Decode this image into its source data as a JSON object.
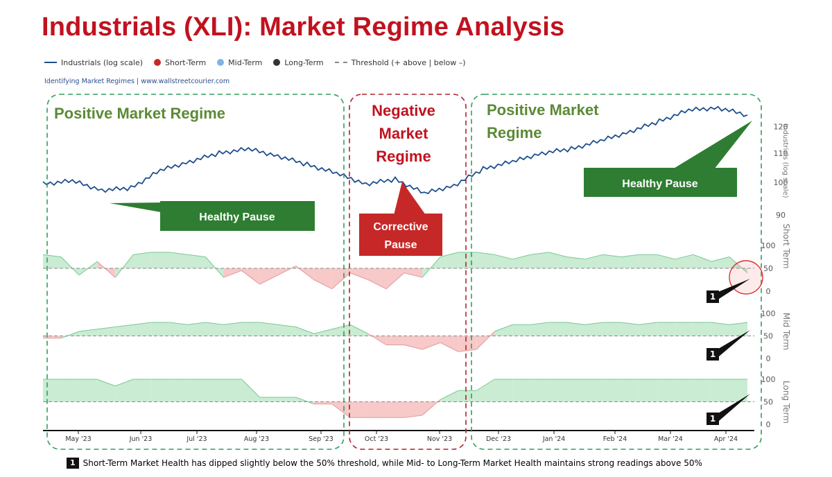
{
  "title": "Industrials (XLI): Market Regime Analysis",
  "legend": [
    {
      "label": "Industrials (log scale)",
      "kind": "line",
      "color": "#1f4e8c"
    },
    {
      "label": "Short-Term",
      "kind": "dot",
      "color": "#c62828"
    },
    {
      "label": "Mid-Term",
      "kind": "dot",
      "color": "#7fb3e6"
    },
    {
      "label": "Long-Term",
      "kind": "dot",
      "color": "#333333"
    },
    {
      "label": "Threshold (+ above | below –)",
      "kind": "dash",
      "color": "#888888"
    }
  ],
  "source": "Identifying Market Regimes | www.wallstreetcourier.com",
  "colors": {
    "price_line": "#1f4e8c",
    "positive_regime": "#2e9e5b",
    "negative_regime": "#b3202a",
    "positive_text": "#5b8a35",
    "negative_text": "#c1121f",
    "area_above": "#c9ecd2",
    "area_below": "#f7c9c9",
    "label_green": "#2e7d32",
    "label_red": "#c62828"
  },
  "regimes": [
    {
      "label": "Positive Market Regime",
      "type": "positive"
    },
    {
      "label": "Negative Market Regime",
      "type": "negative"
    },
    {
      "label": "Positive Market Regime",
      "type": "positive"
    }
  ],
  "callouts": [
    "Healthy Pause",
    "Corrective Pause",
    "Healthy Pause"
  ],
  "footnote": {
    "badge": "1",
    "text": "Short-Term Market Health has dipped slightly below the 50% threshold, while Mid- to Long-Term Market Health maintains strong readings above 50%"
  },
  "chart_data": {
    "type": "line",
    "x_ticks": [
      "May '23",
      "Jun '23",
      "Jul '23",
      "Aug '23",
      "Sep '23",
      "Oct '23",
      "Nov '23",
      "Dec '23",
      "Jan '24",
      "Feb '24",
      "Mar '24",
      "Apr '24"
    ],
    "price": {
      "name": "Industrials (log scale)",
      "ylabel": "Industrials (log scale)",
      "ticks": [
        90,
        100,
        110,
        120
      ],
      "scale": "log",
      "x": [
        "Apr '23",
        "May '23",
        "May '23",
        "Jun '23",
        "Jun '23",
        "Jul '23",
        "Jul '23",
        "Aug '23",
        "Aug '23",
        "Sep '23",
        "Sep '23",
        "Oct '23",
        "Oct '23",
        "Nov '23",
        "Nov '23",
        "Dec '23",
        "Dec '23",
        "Jan '24",
        "Jan '24",
        "Feb '24",
        "Feb '24",
        "Mar '24",
        "Mar '24",
        "Apr '24",
        "Apr '24"
      ],
      "values": [
        99.5,
        100.5,
        97.5,
        98.2,
        104,
        107,
        110,
        111.5,
        109,
        106,
        103,
        99.5,
        101,
        96.5,
        99,
        104.5,
        107,
        110,
        111.5,
        114.5,
        118,
        122,
        126.5,
        127.5,
        124.5
      ]
    },
    "health": [
      {
        "name": "Short Term",
        "ticks": [
          0,
          50,
          100
        ],
        "threshold": 50,
        "values": [
          80,
          75,
          35,
          65,
          30,
          80,
          85,
          85,
          80,
          75,
          30,
          45,
          15,
          35,
          55,
          25,
          5,
          40,
          25,
          5,
          40,
          30,
          75,
          85,
          85,
          80,
          70,
          80,
          85,
          75,
          70,
          80,
          75,
          80,
          80,
          70,
          80,
          65,
          75,
          40
        ]
      },
      {
        "name": "Mid Term",
        "ticks": [
          0,
          50,
          100
        ],
        "threshold": 50,
        "values": [
          45,
          45,
          60,
          65,
          70,
          75,
          80,
          80,
          75,
          80,
          75,
          80,
          80,
          75,
          70,
          55,
          65,
          75,
          55,
          30,
          30,
          20,
          35,
          15,
          20,
          60,
          75,
          75,
          80,
          80,
          75,
          80,
          80,
          75,
          80,
          80,
          80,
          80,
          75,
          80
        ]
      },
      {
        "name": "Long Term",
        "ticks": [
          0,
          50,
          100
        ],
        "threshold": 50,
        "values": [
          100,
          100,
          100,
          100,
          85,
          100,
          100,
          100,
          100,
          100,
          100,
          100,
          60,
          60,
          60,
          45,
          45,
          15,
          15,
          15,
          15,
          20,
          55,
          75,
          75,
          100,
          100,
          100,
          100,
          100,
          100,
          100,
          100,
          100,
          100,
          100,
          100,
          100,
          100,
          100
        ]
      }
    ]
  }
}
